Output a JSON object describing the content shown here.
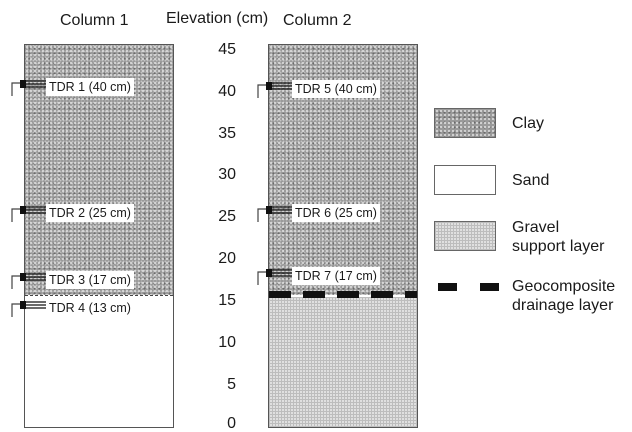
{
  "titles": {
    "column_1": "Column 1",
    "elevation_axis": "Elevation (cm)",
    "column_2": "Column 2"
  },
  "axis_ticks": [
    "45",
    "40",
    "35",
    "30",
    "25",
    "20",
    "15",
    "10",
    "5",
    "0"
  ],
  "column_1": {
    "layers": [
      "Clay",
      "Sand"
    ],
    "sensors": [
      {
        "label": "TDR 1 (40 cm)"
      },
      {
        "label": "TDR 2 (25 cm)"
      },
      {
        "label": "TDR 3 (17 cm)"
      },
      {
        "label": "TDR 4 (13 cm)"
      }
    ]
  },
  "column_2": {
    "layers": [
      "Clay",
      "Geocomposite drainage layer",
      "Gravel support layer"
    ],
    "sensors": [
      {
        "label": "TDR 5 (40 cm)"
      },
      {
        "label": "TDR 6 (25 cm)"
      },
      {
        "label": "TDR 7 (17 cm)"
      }
    ]
  },
  "legend": {
    "clay": "Clay",
    "sand": "Sand",
    "gravel_line1": "Gravel",
    "gravel_line2": "support layer",
    "geo_line1": "Geocomposite",
    "geo_line2": "drainage layer"
  },
  "colors": {
    "clay": "#9a9a9a",
    "gravel": "#e0e0e0",
    "geocomposite": "#111111",
    "outline": "#555555"
  }
}
